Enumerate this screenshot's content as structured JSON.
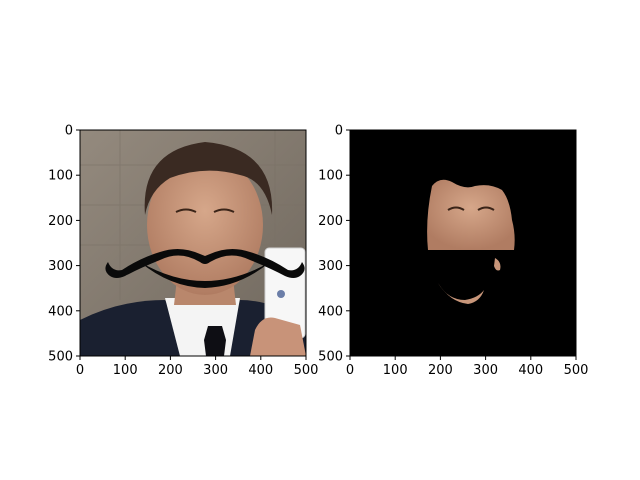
{
  "figure": {
    "panels": [
      {
        "name": "left-image-panel",
        "description_kind": "photo-with-overlay",
        "x_ticks": [
          "0",
          "100",
          "200",
          "300",
          "400",
          "500"
        ],
        "y_ticks": [
          "0",
          "100",
          "200",
          "300",
          "400",
          "500"
        ]
      },
      {
        "name": "right-mask-panel",
        "description_kind": "masked-face",
        "x_ticks": [
          "0",
          "100",
          "200",
          "300",
          "400",
          "500"
        ],
        "y_ticks": [
          "0",
          "100",
          "200",
          "300",
          "400",
          "500"
        ]
      }
    ],
    "axis_range": [
      0,
      500
    ],
    "colors": {
      "background_wall": "#8a8074",
      "suit": "#1a2030",
      "shirt": "#f4f4f4",
      "tie": "#0e0e14",
      "skin": "#c8967a",
      "hair": "#3a2a22",
      "mustache": "#0a0a0a",
      "mask_background": "#000000",
      "card": "#f7f7f7"
    }
  }
}
